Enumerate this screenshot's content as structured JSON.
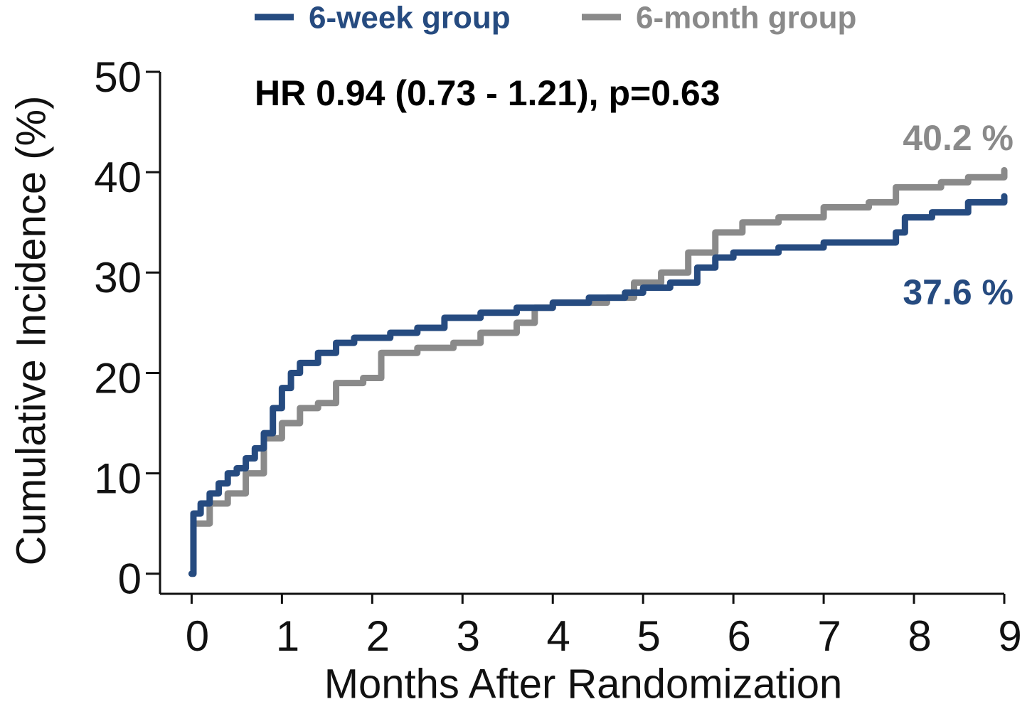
{
  "chart_data": {
    "type": "line",
    "step": true,
    "xlabel": "Months After Randomization",
    "ylabel": "Cumulative Incidence (%)",
    "xlim": [
      -0.35,
      9
    ],
    "xticks": [
      0,
      1,
      2,
      3,
      4,
      5,
      6,
      7,
      8,
      9
    ],
    "ylim": [
      -2,
      50
    ],
    "yticks": [
      0,
      10,
      20,
      30,
      40,
      50
    ],
    "legend": "top",
    "annotations": [
      {
        "text": "HR 0.94 (0.73 - 1.21), p=0.63",
        "color": "#000000"
      },
      {
        "text": "40.2 %",
        "color": "#8a8a8a"
      },
      {
        "text": "37.6 %",
        "color": "#264b80"
      }
    ],
    "series": [
      {
        "name": "6-week group",
        "color": "#264b80",
        "x": [
          0,
          0.02,
          0.1,
          0.2,
          0.3,
          0.4,
          0.5,
          0.6,
          0.7,
          0.8,
          0.9,
          1.0,
          1.1,
          1.2,
          1.4,
          1.6,
          1.8,
          2.2,
          2.5,
          2.8,
          3.2,
          3.6,
          4.0,
          4.4,
          4.8,
          5.0,
          5.3,
          5.6,
          5.8,
          6.0,
          6.5,
          7.0,
          7.8,
          7.9,
          8.2,
          8.6,
          9.0
        ],
        "values": [
          0,
          6,
          7,
          8,
          9,
          10,
          10.5,
          11.5,
          12.5,
          14,
          16.5,
          18.5,
          20,
          21,
          22,
          23,
          23.5,
          24,
          24.5,
          25.5,
          26,
          26.5,
          27,
          27.5,
          28,
          28.5,
          29,
          30.5,
          31.5,
          32,
          32.5,
          33,
          34,
          35.5,
          36,
          37,
          37.6
        ]
      },
      {
        "name": "6-month group",
        "color": "#8a8a8a",
        "x": [
          0,
          0.02,
          0.2,
          0.4,
          0.6,
          0.8,
          1.0,
          1.2,
          1.4,
          1.6,
          1.9,
          2.1,
          2.5,
          2.9,
          3.2,
          3.6,
          3.8,
          4.0,
          4.6,
          4.9,
          5.2,
          5.5,
          5.8,
          6.1,
          6.5,
          7.0,
          7.5,
          7.8,
          8.3,
          8.6,
          9.0
        ],
        "values": [
          0,
          5,
          7,
          8,
          10,
          13.5,
          15,
          16.5,
          17,
          19,
          19.5,
          22,
          22.5,
          23,
          24,
          25,
          26.5,
          27,
          27.5,
          29,
          30,
          32,
          34,
          35,
          35.5,
          36.5,
          37,
          38.5,
          39,
          39.5,
          40.2
        ]
      }
    ]
  }
}
